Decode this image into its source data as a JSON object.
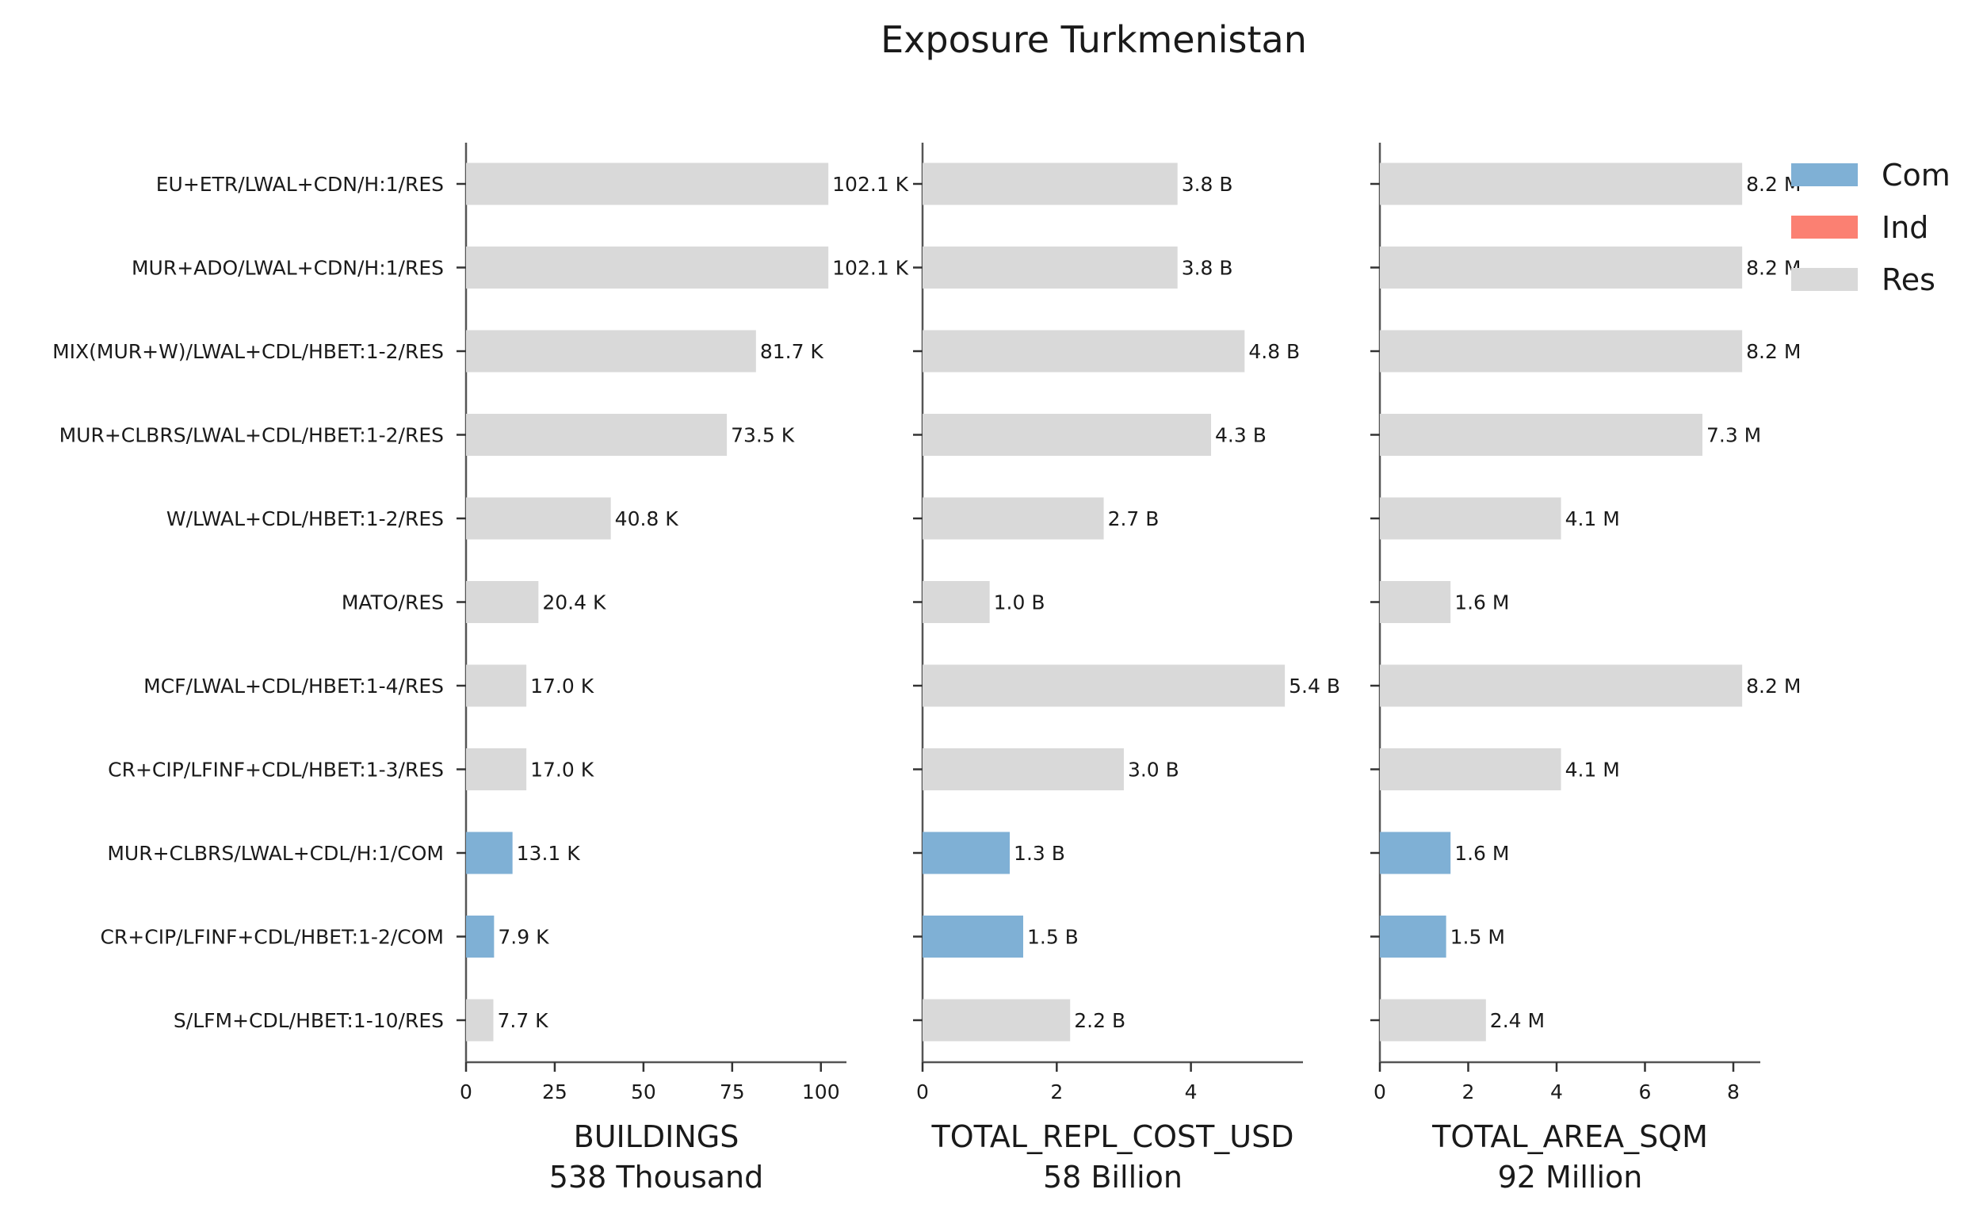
{
  "chart_data": {
    "type": "bar",
    "orientation": "horizontal",
    "title": "Exposure Turkmenistan",
    "categories": [
      "EU+ETR/LWAL+CDN/H:1/RES",
      "MUR+ADO/LWAL+CDN/H:1/RES",
      "MIX(MUR+W)/LWAL+CDL/HBET:1-2/RES",
      "MUR+CLBRS/LWAL+CDL/HBET:1-2/RES",
      "W/LWAL+CDL/HBET:1-2/RES",
      "MATO/RES",
      "MCF/LWAL+CDL/HBET:1-4/RES",
      "CR+CIP/LFINF+CDL/HBET:1-3/RES",
      "MUR+CLBRS/LWAL+CDL/H:1/COM",
      "CR+CIP/LFINF+CDL/HBET:1-2/COM",
      "S/LFM+CDL/HBET:1-10/RES"
    ],
    "occupancy": [
      "Res",
      "Res",
      "Res",
      "Res",
      "Res",
      "Res",
      "Res",
      "Res",
      "Com",
      "Com",
      "Res"
    ],
    "legend": {
      "placement": "top-right",
      "entries": [
        {
          "name": "Com",
          "color": "#7fb0d5"
        },
        {
          "name": "Ind",
          "color": "#fb8072"
        },
        {
          "name": "Res",
          "color": "#d9d9d9"
        }
      ]
    },
    "panels": [
      {
        "xlabel": "BUILDINGS",
        "subtitle": "538 Thousand",
        "unit": "Thousand",
        "values": [
          102.1,
          102.1,
          81.7,
          73.5,
          40.8,
          20.4,
          17.0,
          17.0,
          13.1,
          7.9,
          7.7
        ],
        "labels": [
          "102.1 K",
          "102.1 K",
          "81.7 K",
          "73.5 K",
          "40.8 K",
          "20.4 K",
          "17.0 K",
          "17.0 K",
          "13.1 K",
          "7.9 K",
          "7.7 K"
        ],
        "xticks": [
          0,
          25,
          50,
          75,
          100
        ],
        "xtick_labels": [
          "0",
          "25",
          "50",
          "75",
          "100"
        ],
        "xlim": [
          0,
          107.2
        ]
      },
      {
        "xlabel": "TOTAL_REPL_COST_USD",
        "subtitle": "58 Billion",
        "unit": "Billion",
        "values": [
          3.8,
          3.8,
          4.8,
          4.3,
          2.7,
          1.0,
          5.4,
          3.0,
          1.3,
          1.5,
          2.2
        ],
        "labels": [
          "3.8 B",
          "3.8 B",
          "4.8 B",
          "4.3 B",
          "2.7 B",
          "1.0 B",
          "5.4 B",
          "3.0 B",
          "1.3 B",
          "1.5 B",
          "2.2 B"
        ],
        "xticks": [
          0,
          2,
          4
        ],
        "xtick_labels": [
          "0",
          "2",
          "4"
        ],
        "xlim": [
          0,
          5.67
        ]
      },
      {
        "xlabel": "TOTAL_AREA_SQM",
        "subtitle": "92 Million",
        "unit": "Million",
        "values": [
          8.2,
          8.2,
          8.2,
          7.3,
          4.1,
          1.6,
          8.2,
          4.1,
          1.6,
          1.5,
          2.4
        ],
        "labels": [
          "8.2 M",
          "8.2 M",
          "8.2 M",
          "7.3 M",
          "4.1 M",
          "1.6 M",
          "8.2 M",
          "4.1 M",
          "1.6 M",
          "1.5 M",
          "2.4 M"
        ],
        "xticks": [
          0,
          2,
          4,
          6,
          8
        ],
        "xtick_labels": [
          "0",
          "2",
          "4",
          "6",
          "8"
        ],
        "xlim": [
          0,
          8.61
        ]
      }
    ]
  }
}
